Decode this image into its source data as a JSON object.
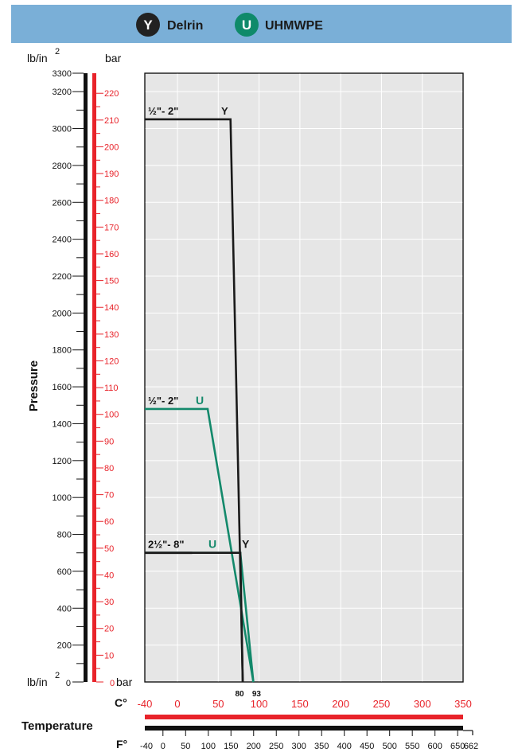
{
  "legend": {
    "background": "#7aafd7",
    "items": [
      {
        "badge": "Y",
        "label": "Delrin",
        "badge_color": "#222222"
      },
      {
        "badge": "U",
        "label": "UHMWPE",
        "badge_color": "#0f8a6a"
      }
    ]
  },
  "colors": {
    "delrin": "#1a1a1a",
    "uhmwpe": "#13896b",
    "bar_axis": "#e8232a",
    "celsius_axis": "#e8232a",
    "plot_bg": "#e6e6e6",
    "grid": "#ffffff"
  },
  "chart_data": {
    "type": "line",
    "xlabel": "Temperature",
    "ylabel": "Pressure",
    "psi_axis": {
      "unit_top": "lb/in2",
      "unit_bottom": "lb/in2",
      "range": [
        0,
        3300
      ],
      "tick_labels": [
        0,
        200,
        400,
        600,
        800,
        1000,
        1200,
        1400,
        1600,
        1800,
        2000,
        2200,
        2400,
        2600,
        2800,
        3000,
        3200,
        3300
      ]
    },
    "bar_axis": {
      "unit_top": "bar",
      "unit_bottom": "bar",
      "range": [
        0,
        227.5
      ],
      "tick_labels": [
        0,
        10,
        20,
        30,
        40,
        50,
        60,
        70,
        80,
        90,
        100,
        110,
        120,
        130,
        140,
        150,
        160,
        170,
        180,
        190,
        200,
        210,
        220
      ]
    },
    "celsius_axis": {
      "unit": "C°",
      "range": [
        -40,
        350
      ],
      "tick_labels": [
        -40,
        0,
        50,
        100,
        150,
        200,
        250,
        300,
        350
      ],
      "marked_values": [
        80,
        93
      ]
    },
    "fahrenheit_axis": {
      "unit": "F°",
      "range": [
        -40,
        662
      ],
      "tick_labels": [
        -40,
        0,
        50,
        100,
        150,
        200,
        250,
        300,
        350,
        400,
        450,
        500,
        550,
        600,
        650,
        662
      ]
    },
    "grid": true,
    "series": [
      {
        "material": "Y",
        "size_label": "½\"- 2\"",
        "marker_label": "Y",
        "points": [
          [
            -40,
            3050
          ],
          [
            65,
            3050
          ],
          [
            80,
            0
          ]
        ]
      },
      {
        "material": "U",
        "size_label": "½\"- 2\"",
        "marker_label": "U",
        "points": [
          [
            -40,
            1480
          ],
          [
            37,
            1480
          ],
          [
            93,
            0
          ]
        ]
      },
      {
        "material": "Y",
        "size_label": "2½\"- 8\"",
        "marker_label": "Y",
        "points": [
          [
            -40,
            700
          ],
          [
            77,
            700
          ],
          [
            80,
            0
          ]
        ]
      },
      {
        "material": "U",
        "size_label": "2½\"- 8\"",
        "marker_label": "U",
        "points": [
          [
            -40,
            700
          ],
          [
            77,
            700
          ],
          [
            93,
            0
          ]
        ]
      }
    ]
  }
}
